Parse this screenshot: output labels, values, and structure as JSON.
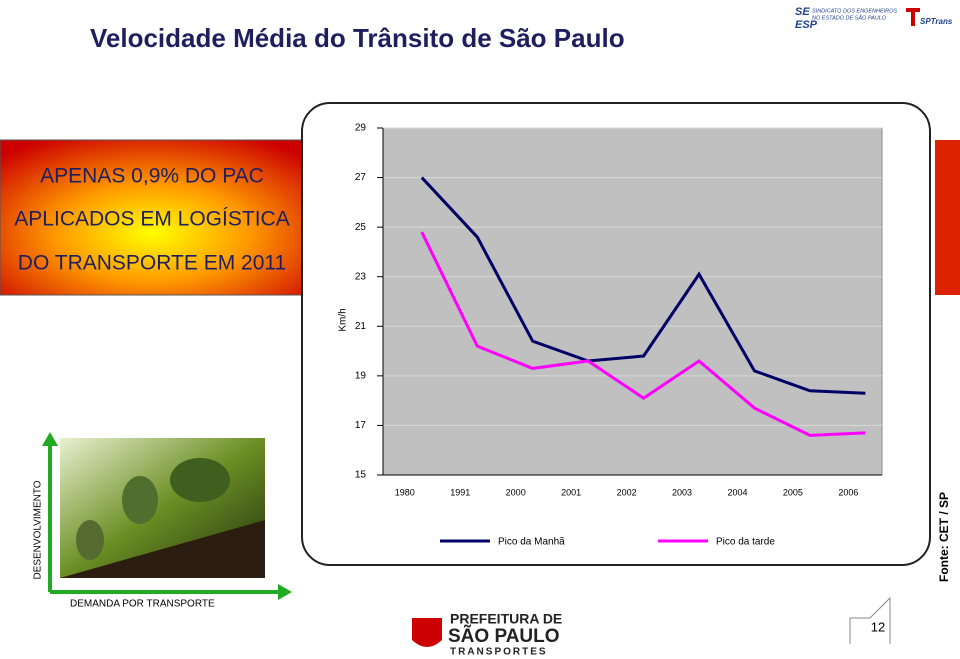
{
  "title": "Velocidade Média do Trânsito de São Paulo",
  "callout": [
    "APENAS 0,9% DO PAC",
    "APLICADOS EM LOGÍSTICA",
    "DO TRANSPORTE EM 2011"
  ],
  "vertical_axis_label": "DESENVOLVIMENTO",
  "horizontal_axis_label": "DEMANDA POR TRANSPORTE",
  "source": "Fonte: CET / SP",
  "page_number": "12",
  "logos": {
    "union": [
      "SE",
      "ESP",
      "SINDICATO DOS ENGENHEIROS",
      "NO ESTADO DE SÃO PAULO"
    ],
    "sptrans": "SPTrans",
    "prefeitura": [
      "PREFEITURA DE",
      "SÃO PAULO",
      "TRANSPORTES"
    ]
  },
  "chart_data": {
    "type": "line",
    "ylabel": "Km/h",
    "categories": [
      "1980",
      "1991",
      "2000",
      "2001",
      "2002",
      "2003",
      "2004",
      "2005",
      "2006"
    ],
    "series": [
      {
        "name": "Pico da Manhã",
        "color": "#000066",
        "values": [
          27.0,
          24.6,
          20.4,
          19.6,
          19.8,
          23.1,
          19.2,
          18.4,
          18.3
        ]
      },
      {
        "name": "Pico da tarde",
        "color": "#ff00ff",
        "values": [
          24.8,
          20.2,
          19.3,
          19.6,
          18.1,
          19.6,
          17.7,
          16.6,
          16.7
        ]
      }
    ],
    "ylim": [
      15,
      29
    ],
    "yticks": [
      15,
      17,
      19,
      21,
      23,
      25,
      27,
      29
    ],
    "grid": true,
    "plot_background": "#c0c0c0",
    "legend": "bottom"
  }
}
